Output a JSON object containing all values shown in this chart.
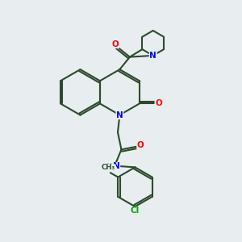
{
  "background_color": "#e8eef0",
  "bond_color": "#2d4a2d",
  "atom_colors": {
    "N": "#0000ff",
    "O": "#ff0000",
    "Cl": "#00aa00",
    "C": "#2d4a2d",
    "H": "#888888"
  },
  "figsize": [
    3.0,
    3.0
  ],
  "dpi": 100
}
